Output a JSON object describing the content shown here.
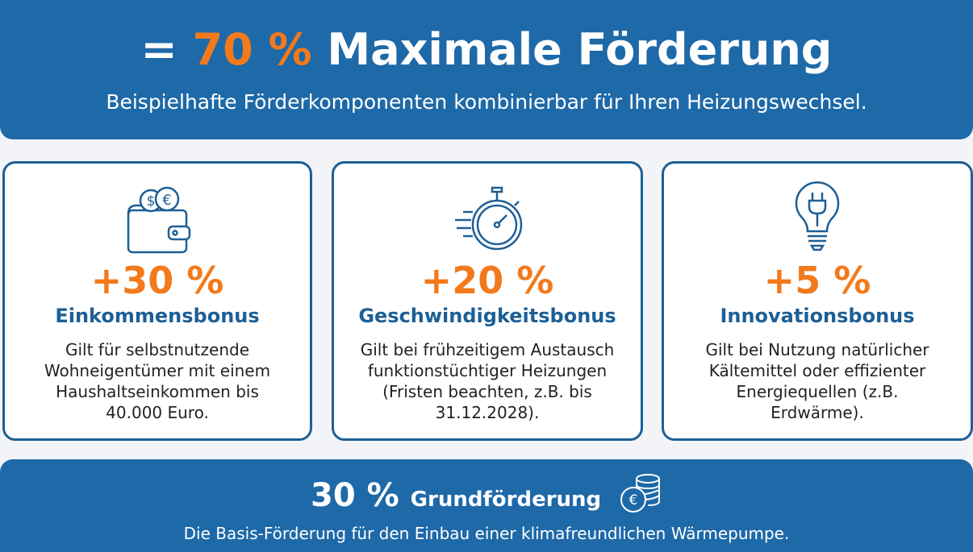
{
  "header": {
    "prefix": "= ",
    "highlight": "70 %",
    "title": " Maximale Förderung",
    "subtitle": "Beispielhafte Förderkomponenten kombinierbar für Ihren Heizungswechsel."
  },
  "cards": [
    {
      "icon": "wallet-coins-icon",
      "percent": "+30 %",
      "name": "Einkommensbonus",
      "description": "Gilt für selbstnutzende Wohneigentümer mit einem Haushaltseinkommen bis 40.000 Euro."
    },
    {
      "icon": "stopwatch-icon",
      "percent": "+20 %",
      "name": "Geschwindigkeitsbonus",
      "description": "Gilt bei frühzeitigem Austausch funktionstüchtiger Heizungen (Fristen beachten, z.B. bis 31.12.2028)."
    },
    {
      "icon": "lightbulb-plug-icon",
      "percent": "+5 %",
      "name": "Innovationsbonus",
      "description": "Gilt bei Nutzung natürlicher Kältemittel oder effizienter Energiequellen (z.B. Erdwärme)."
    }
  ],
  "base": {
    "percent": "30 %",
    "label": "Grundförderung",
    "description": "Die Basis-Förderung für den Einbau einer klimafreundlichen Wärmepumpe."
  },
  "colors": {
    "blue": "#1e69a8",
    "orange": "#f27a1c",
    "dark_blue": "#1d5f96"
  }
}
